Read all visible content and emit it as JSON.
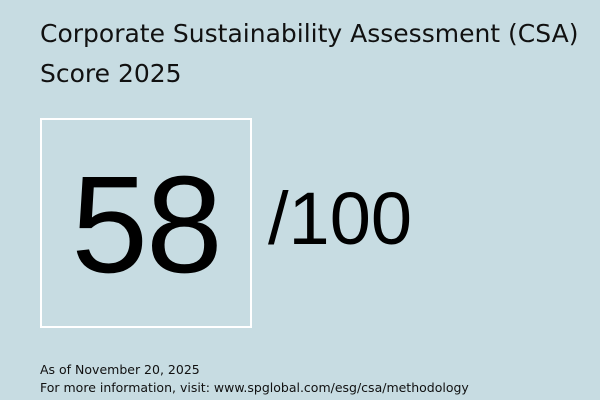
{
  "title": "Corporate Sustainability Assessment (CSA) Score 2025",
  "score": {
    "value": "58",
    "max": "/100"
  },
  "footer": {
    "as_of": "As of November 20, 2025",
    "info_prefix": "For more information, visit: ",
    "info_link": "www.spglobal.com/esg/csa/methodology"
  },
  "colors": {
    "background": "#c7dce2",
    "box_border": "#ffffff",
    "text": "#111111"
  }
}
